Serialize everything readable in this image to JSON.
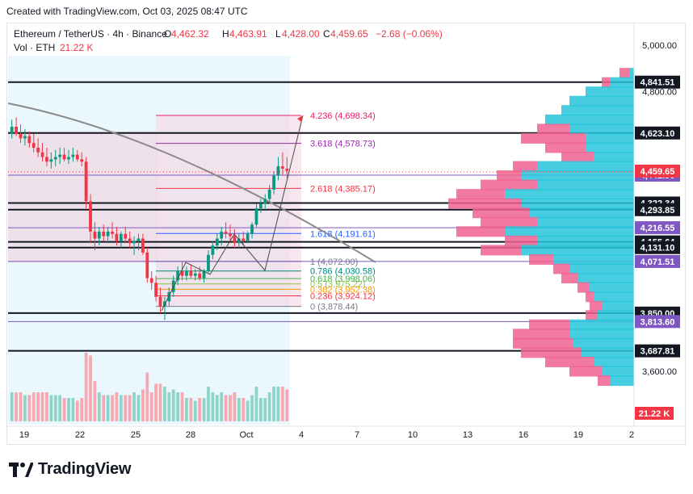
{
  "header": {
    "created_text": "Created with TradingView.com, Oct 03, 2025 08:47 UTC"
  },
  "legend": {
    "symbol": "Ethereum / TetherUS · 4h · Binance",
    "o_label": "O",
    "o_value": "4,462.32",
    "h_label": "H",
    "h_value": "4,463.91",
    "l_label": "L",
    "l_value": "4,428.00",
    "c_label": "C",
    "c_value": "4,459.65",
    "change": "−2.68 (−0.06%)",
    "vol_label": "Vol · ETH",
    "vol_value": "21.22 K"
  },
  "colors": {
    "up": "#089981",
    "down": "#f23645",
    "fib_pink": "#e91e63",
    "fib_purple": "#9c27b0",
    "fib_blue": "#2962ff",
    "vp_cyan": "#26c6da",
    "vp_pink": "#f06292",
    "level": "#131722",
    "current_price": "#f23645",
    "purple_tag": "#7e57c2"
  },
  "chart_data": {
    "type": "candlestick",
    "title": "",
    "xlabel": "",
    "ylabel": "",
    "ylim": [
      3530,
      5060
    ],
    "price_axis_ticks": [
      "5,000.00",
      "4,800.00",
      "3,600.00"
    ],
    "time_axis_ticks": [
      "19",
      "22",
      "25",
      "28",
      "Oct",
      "4",
      "7",
      "10",
      "13",
      "16",
      "19",
      "2"
    ],
    "current_price": "4,459.65",
    "volume_label": "21.22 K",
    "horizontal_levels": [
      {
        "label": "4,841.51",
        "price": 4841.51,
        "style": "black"
      },
      {
        "label": "4,623.10",
        "price": 4623.1,
        "style": "black"
      },
      {
        "label": "4,441.96",
        "price": 4441.96,
        "style": "purple"
      },
      {
        "label": "4,322.59",
        "price": 4322.59,
        "style": "black"
      },
      {
        "label": "4,322.34",
        "price": 4322.34,
        "style": "black"
      },
      {
        "label": "4,293.85",
        "price": 4293.85,
        "style": "black"
      },
      {
        "label": "4,216.55",
        "price": 4216.55,
        "style": "purple"
      },
      {
        "label": "4,155.64",
        "price": 4155.64,
        "style": "black"
      },
      {
        "label": "4,131.10",
        "price": 4131.1,
        "style": "black"
      },
      {
        "label": "4,071.51",
        "price": 4071.51,
        "style": "purple"
      },
      {
        "label": "3,850.00",
        "price": 3850.0,
        "style": "black"
      },
      {
        "label": "3,813.60",
        "price": 3813.6,
        "style": "purple"
      },
      {
        "label": "3,687.81",
        "price": 3687.81,
        "style": "black"
      }
    ],
    "fibonacci": [
      {
        "ratio": "4.236",
        "label": "4.236 (4,698.34)",
        "price": 4698.34,
        "color": "#e91e63"
      },
      {
        "ratio": "3.618",
        "label": "3.618 (4,578.73)",
        "price": 4578.73,
        "color": "#9c27b0"
      },
      {
        "ratio": "2.618",
        "label": "2.618 (4,385.17)",
        "price": 4385.17,
        "color": "#f23645"
      },
      {
        "ratio": "1.618",
        "label": "1.618 (4,191.61)",
        "price": 4191.61,
        "color": "#2962ff"
      },
      {
        "ratio": "1",
        "label": "1 (4,072.00)",
        "price": 4072.0,
        "color": "#787b86"
      },
      {
        "ratio": "0.786",
        "label": "0.786 (4,030.58)",
        "price": 4030.58,
        "color": "#00897b"
      },
      {
        "ratio": "0.618",
        "label": "0.618 (3,998.06)",
        "price": 3998.06,
        "color": "#4caf50"
      },
      {
        "ratio": "0.5",
        "label": "0.5 (3,975.22)",
        "price": 3975.22,
        "color": "#8bc34a"
      },
      {
        "ratio": "0.382",
        "label": "0.382 (3,952.38)",
        "price": 3952.38,
        "color": "#ff9800"
      },
      {
        "ratio": "0.236",
        "label": "0.236 (3,924.12)",
        "price": 3924.12,
        "color": "#f23645"
      },
      {
        "ratio": "0",
        "label": "0 (3,878.44)",
        "price": 3878.44,
        "color": "#787b86"
      }
    ],
    "candles": [
      [
        4620,
        4680,
        4600,
        4650
      ],
      [
        4650,
        4690,
        4610,
        4620
      ],
      [
        4620,
        4660,
        4580,
        4600
      ],
      [
        4600,
        4640,
        4570,
        4610
      ],
      [
        4610,
        4630,
        4560,
        4580
      ],
      [
        4580,
        4620,
        4540,
        4560
      ],
      [
        4560,
        4600,
        4520,
        4540
      ],
      [
        4540,
        4580,
        4500,
        4520
      ],
      [
        4520,
        4560,
        4480,
        4500
      ],
      [
        4500,
        4540,
        4470,
        4510
      ],
      [
        4510,
        4550,
        4480,
        4520
      ],
      [
        4520,
        4560,
        4490,
        4530
      ],
      [
        4530,
        4560,
        4500,
        4510
      ],
      [
        4510,
        4550,
        4490,
        4520
      ],
      [
        4520,
        4560,
        4500,
        4530
      ],
      [
        4530,
        4550,
        4500,
        4510
      ],
      [
        4510,
        4540,
        4480,
        4500
      ],
      [
        4500,
        4520,
        4300,
        4330
      ],
      [
        4330,
        4360,
        4150,
        4200
      ],
      [
        4200,
        4240,
        4120,
        4170
      ],
      [
        4170,
        4220,
        4140,
        4200
      ],
      [
        4200,
        4230,
        4160,
        4180
      ],
      [
        4180,
        4220,
        4150,
        4200
      ],
      [
        4200,
        4240,
        4170,
        4190
      ],
      [
        4190,
        4220,
        4140,
        4160
      ],
      [
        4160,
        4200,
        4130,
        4190
      ],
      [
        4190,
        4220,
        4150,
        4170
      ],
      [
        4170,
        4200,
        4130,
        4150
      ],
      [
        4150,
        4180,
        4100,
        4160
      ],
      [
        4160,
        4190,
        4120,
        4170
      ],
      [
        4170,
        4190,
        4100,
        4110
      ],
      [
        4110,
        4130,
        3980,
        4000
      ],
      [
        4000,
        4030,
        3950,
        3980
      ],
      [
        3980,
        4010,
        3900,
        3920
      ],
      [
        3920,
        3960,
        3850,
        3880
      ],
      [
        3880,
        3920,
        3820,
        3900
      ],
      [
        3900,
        3960,
        3880,
        3940
      ],
      [
        3940,
        4010,
        3920,
        3990
      ],
      [
        3990,
        4050,
        3970,
        4030
      ],
      [
        4030,
        4070,
        3990,
        4010
      ],
      [
        4010,
        4050,
        3990,
        4030
      ],
      [
        4030,
        4060,
        4000,
        4010
      ],
      [
        4010,
        4040,
        3990,
        4020
      ],
      [
        4020,
        4050,
        3990,
        4000
      ],
      [
        4000,
        4040,
        3980,
        4030
      ],
      [
        4030,
        4120,
        4020,
        4100
      ],
      [
        4100,
        4160,
        4080,
        4140
      ],
      [
        4140,
        4190,
        4120,
        4170
      ],
      [
        4170,
        4220,
        4140,
        4200
      ],
      [
        4200,
        4240,
        4170,
        4190
      ],
      [
        4190,
        4230,
        4160,
        4180
      ],
      [
        4180,
        4210,
        4130,
        4150
      ],
      [
        4150,
        4190,
        4130,
        4170
      ],
      [
        4170,
        4200,
        4140,
        4160
      ],
      [
        4160,
        4200,
        4150,
        4190
      ],
      [
        4190,
        4240,
        4170,
        4230
      ],
      [
        4230,
        4320,
        4220,
        4300
      ],
      [
        4300,
        4340,
        4280,
        4320
      ],
      [
        4320,
        4360,
        4300,
        4340
      ],
      [
        4340,
        4400,
        4320,
        4380
      ],
      [
        4380,
        4460,
        4360,
        4440
      ],
      [
        4440,
        4520,
        4420,
        4480
      ],
      [
        4480,
        4540,
        4440,
        4470
      ],
      [
        4470,
        4520,
        4430,
        4460
      ]
    ],
    "volume_profile_note": "session volume profile on right side"
  },
  "fib_date_label": "Oct"
}
